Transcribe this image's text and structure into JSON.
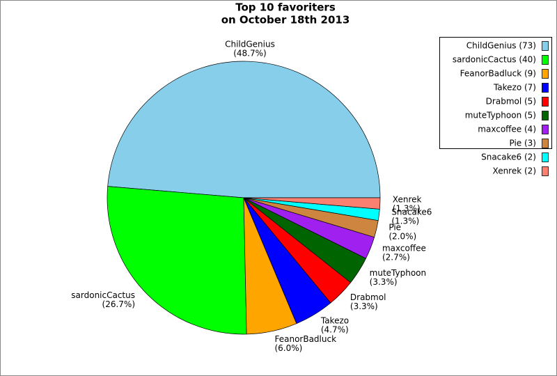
{
  "chart_data": {
    "type": "pie",
    "title": "Top 10 favoriters",
    "subtitle": "on October 18th 2013",
    "categories": [
      "ChildGenius",
      "sardonicCactus",
      "FeanorBadluck",
      "Takezo",
      "Drabmol",
      "muteTyphoon",
      "maxcoffee",
      "Pie",
      "Snacake6",
      "Xenrek"
    ],
    "values": [
      73,
      40,
      9,
      7,
      5,
      5,
      4,
      3,
      2,
      2
    ],
    "slice_labels": [
      "(48.7%)",
      "(26.7%)",
      "(6.0%)",
      "(4.7%)",
      "(3.3%)",
      "(3.3%)",
      "(2.7%)",
      "(2.0%)",
      "(1.3%)",
      "(1.3%)"
    ],
    "legend_labels": [
      "ChildGenius (73)",
      "sardonicCactus (40)",
      "FeanorBadluck (9)",
      "Takezo (7)",
      "Drabmol (5)",
      "muteTyphoon (5)",
      "maxcoffee (4)",
      "Pie (3)",
      "Snacake6 (2)",
      "Xenrek (2)"
    ],
    "colors": [
      "#87ceeb",
      "#00ff00",
      "#ffa500",
      "#0000ff",
      "#ff0000",
      "#006400",
      "#a020f0",
      "#cd853f",
      "#00ffff",
      "#fa8072"
    ],
    "legend": "upper right"
  }
}
